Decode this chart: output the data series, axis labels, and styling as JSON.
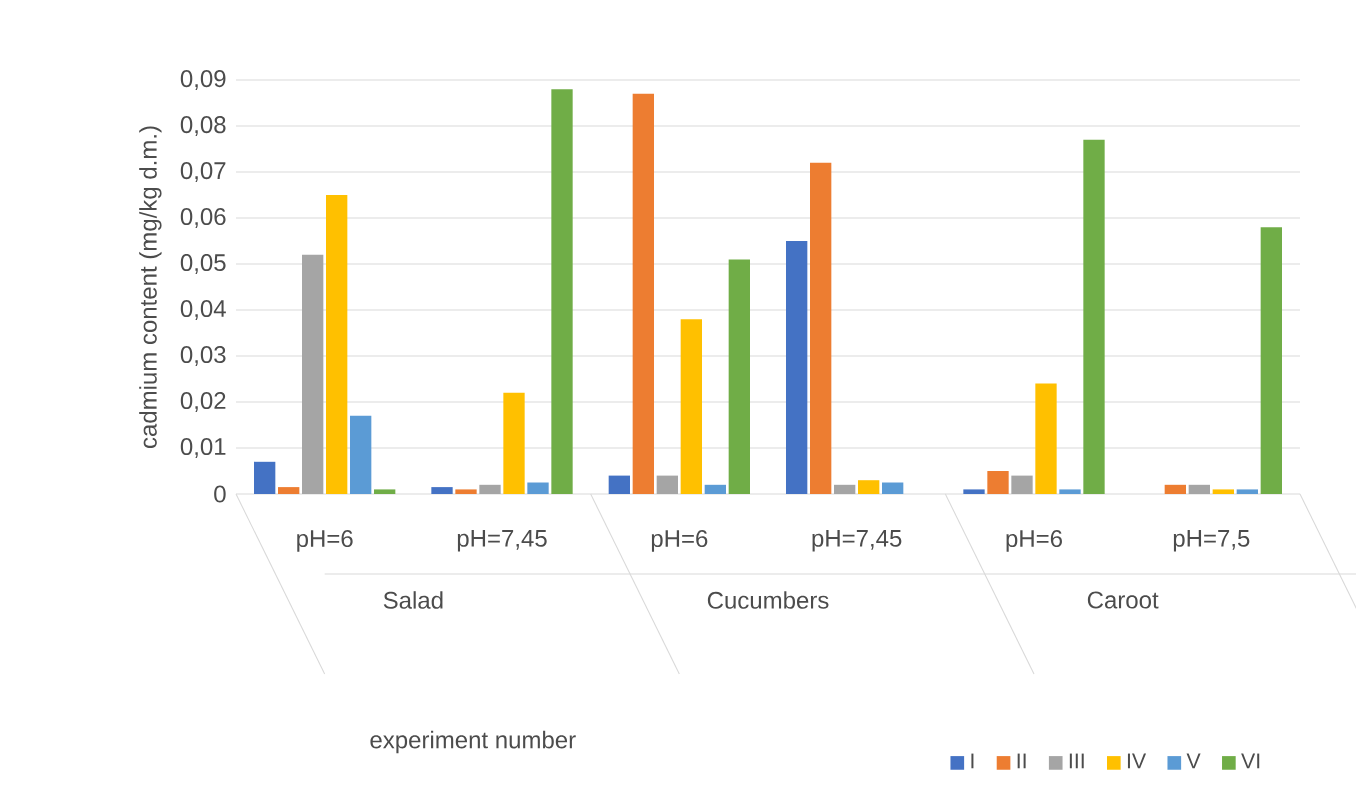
{
  "chart_data": {
    "type": "bar",
    "ylabel": "cadmium content (mg/kg d.m.)",
    "legend_title": "experiment number",
    "categories": [
      "pH=6",
      "pH=7,45",
      "pH=6",
      "pH=7,45",
      "pH=6",
      "pH=7,5"
    ],
    "annotations": [
      "Salad",
      "Cucumbers",
      "Caroot"
    ],
    "series": [
      {
        "name": "I",
        "color": "#4472c4",
        "values": [
          0.007,
          0.0015,
          0.004,
          0.055,
          0.001,
          0
        ]
      },
      {
        "name": "II",
        "color": "#ed7d31",
        "values": [
          0.0015,
          0.001,
          0.087,
          0.072,
          0.005,
          0.002
        ]
      },
      {
        "name": "III",
        "color": "#a5a5a5",
        "values": [
          0.052,
          0.002,
          0.004,
          0.002,
          0.004,
          0.002
        ]
      },
      {
        "name": "IV",
        "color": "#ffc000",
        "values": [
          0.065,
          0.022,
          0.038,
          0.003,
          0.024,
          0.001
        ]
      },
      {
        "name": "V",
        "color": "#5b9bd5",
        "values": [
          0.017,
          0.0025,
          0.002,
          0.0025,
          0.001,
          0.001
        ]
      },
      {
        "name": "VI",
        "color": "#70ad47",
        "values": [
          0.001,
          0.088,
          0.051,
          0,
          0.077,
          0.058
        ]
      }
    ],
    "ylim": [
      0,
      0.09
    ],
    "yticks": [
      0,
      {
        "value": 0.01,
        "label": "0,01"
      },
      {
        "value": 0.02,
        "label": "0,02"
      },
      {
        "value": 0.03,
        "label": "0,03"
      },
      {
        "value": 0.04,
        "label": "0,04"
      },
      {
        "value": 0.05,
        "label": "0,05"
      },
      {
        "value": 0.06,
        "label": "0,06"
      },
      {
        "value": 0.07,
        "label": "0,07"
      },
      {
        "value": 0.08,
        "label": "0,08"
      },
      {
        "value": 0.09,
        "label": "0,09"
      }
    ],
    "grid": "y",
    "legend": "bottom"
  }
}
